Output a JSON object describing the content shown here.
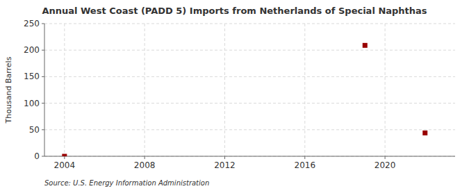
{
  "chart_data": {
    "type": "scatter",
    "title": "Annual West Coast (PADD 5) Imports from Netherlands of Special Naphthas",
    "ylabel": "Thousand Barrels",
    "source": "Source: U.S. Energy Information Administration",
    "x": [
      2004,
      2019,
      2022
    ],
    "values": [
      0,
      209,
      44
    ],
    "color": "#990000",
    "marker": "square",
    "xlim": [
      2003,
      2023.5
    ],
    "ylim": [
      0,
      250
    ],
    "xticks": [
      2004,
      2008,
      2012,
      2016,
      2020
    ],
    "yticks": [
      0,
      50,
      100,
      150,
      200,
      250
    ],
    "grid": true
  }
}
